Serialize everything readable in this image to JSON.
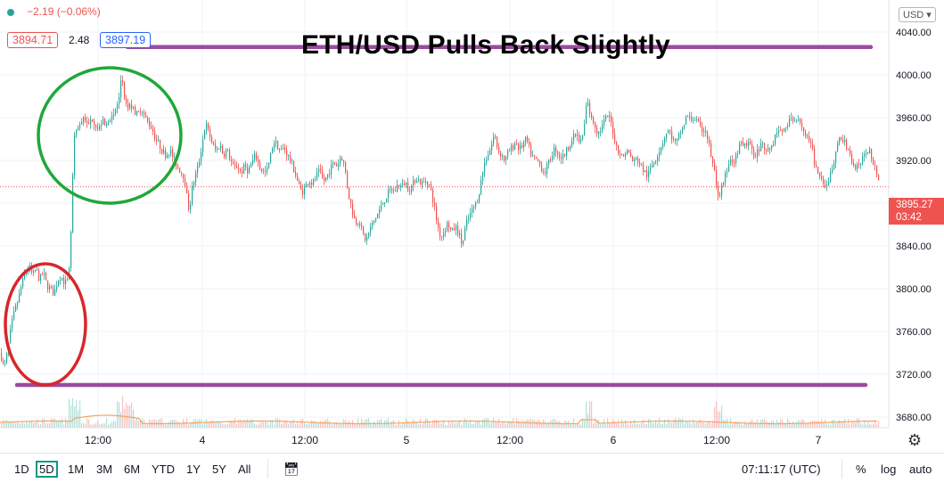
{
  "header": {
    "change_text": "−2.19 (−0.06%)",
    "bid": "3894.71",
    "spread": "2.48",
    "ask": "3897.19",
    "currency": "USD ▾"
  },
  "colors": {
    "up": "#26a69a",
    "down": "#ef5350",
    "annotation_line": "#9c4aa0",
    "circle_green": "#1fa839",
    "circle_red": "#d9262b"
  },
  "chart_data": {
    "type": "candlestick",
    "title": "ETH/USD Pulls Back Slightly",
    "ylim": [
      3670,
      4070
    ],
    "y_ticks": [
      "4040.00",
      "4000.00",
      "3960.00",
      "3920.00",
      "3880.00",
      "3840.00",
      "3800.00",
      "3760.00",
      "3720.00",
      "3680.00"
    ],
    "y_tick_values": [
      4040,
      4000,
      3960,
      3920,
      3880,
      3840,
      3800,
      3760,
      3720,
      3680
    ],
    "x_ticks": [
      "12:00",
      "4",
      "12:00",
      "5",
      "12:00",
      "6",
      "12:00",
      "7"
    ],
    "last_price": "3895.27",
    "countdown": "03:42",
    "price_path": [
      [
        0,
        3740
      ],
      [
        4,
        3725
      ],
      [
        8,
        3742
      ],
      [
        12,
        3765
      ],
      [
        16,
        3780
      ],
      [
        20,
        3790
      ],
      [
        24,
        3805
      ],
      [
        28,
        3815
      ],
      [
        32,
        3822
      ],
      [
        36,
        3812
      ],
      [
        40,
        3818
      ],
      [
        44,
        3808
      ],
      [
        48,
        3815
      ],
      [
        52,
        3803
      ],
      [
        56,
        3800
      ],
      [
        60,
        3795
      ],
      [
        64,
        3808
      ],
      [
        68,
        3812
      ],
      [
        72,
        3805
      ],
      [
        76,
        3808
      ],
      [
        78,
        3825
      ],
      [
        80,
        3880
      ],
      [
        82,
        3930
      ],
      [
        84,
        3950
      ],
      [
        86,
        3945
      ],
      [
        90,
        3955
      ],
      [
        94,
        3962
      ],
      [
        98,
        3950
      ],
      [
        102,
        3960
      ],
      [
        106,
        3955
      ],
      [
        110,
        3948
      ],
      [
        114,
        3958
      ],
      [
        118,
        3950
      ],
      [
        122,
        3962
      ],
      [
        126,
        3958
      ],
      [
        130,
        3970
      ],
      [
        134,
        3980
      ],
      [
        136,
        4010
      ],
      [
        138,
        3978
      ],
      [
        142,
        3968
      ],
      [
        146,
        3972
      ],
      [
        150,
        3966
      ],
      [
        154,
        3962
      ],
      [
        158,
        3970
      ],
      [
        162,
        3960
      ],
      [
        166,
        3955
      ],
      [
        170,
        3950
      ],
      [
        174,
        3940
      ],
      [
        178,
        3935
      ],
      [
        182,
        3928
      ],
      [
        186,
        3925
      ],
      [
        190,
        3930
      ],
      [
        194,
        3922
      ],
      [
        198,
        3915
      ],
      [
        202,
        3910
      ],
      [
        206,
        3905
      ],
      [
        210,
        3880
      ],
      [
        212,
        3872
      ],
      [
        214,
        3890
      ],
      [
        218,
        3905
      ],
      [
        222,
        3915
      ],
      [
        226,
        3935
      ],
      [
        230,
        3955
      ],
      [
        234,
        3945
      ],
      [
        238,
        3935
      ],
      [
        242,
        3928
      ],
      [
        246,
        3935
      ],
      [
        250,
        3925
      ],
      [
        254,
        3930
      ],
      [
        258,
        3920
      ],
      [
        262,
        3912
      ],
      [
        266,
        3915
      ],
      [
        270,
        3908
      ],
      [
        274,
        3915
      ],
      [
        278,
        3910
      ],
      [
        282,
        3918
      ],
      [
        286,
        3925
      ],
      [
        290,
        3915
      ],
      [
        294,
        3910
      ],
      [
        298,
        3908
      ],
      [
        302,
        3920
      ],
      [
        306,
        3938
      ],
      [
        310,
        3935
      ],
      [
        314,
        3928
      ],
      [
        318,
        3932
      ],
      [
        322,
        3925
      ],
      [
        326,
        3918
      ],
      [
        330,
        3910
      ],
      [
        334,
        3898
      ],
      [
        338,
        3890
      ],
      [
        342,
        3895
      ],
      [
        346,
        3902
      ],
      [
        350,
        3898
      ],
      [
        354,
        3905
      ],
      [
        358,
        3910
      ],
      [
        362,
        3900
      ],
      [
        366,
        3905
      ],
      [
        370,
        3912
      ],
      [
        374,
        3918
      ],
      [
        378,
        3915
      ],
      [
        382,
        3925
      ],
      [
        386,
        3915
      ],
      [
        390,
        3890
      ],
      [
        394,
        3875
      ],
      [
        398,
        3862
      ],
      [
        402,
        3865
      ],
      [
        406,
        3852
      ],
      [
        410,
        3845
      ],
      [
        414,
        3855
      ],
      [
        418,
        3862
      ],
      [
        422,
        3868
      ],
      [
        426,
        3875
      ],
      [
        430,
        3882
      ],
      [
        434,
        3888
      ],
      [
        438,
        3893
      ],
      [
        442,
        3890
      ],
      [
        446,
        3898
      ],
      [
        450,
        3895
      ],
      [
        454,
        3900
      ],
      [
        458,
        3893
      ],
      [
        462,
        3896
      ],
      [
        466,
        3905
      ],
      [
        470,
        3900
      ],
      [
        474,
        3898
      ],
      [
        478,
        3902
      ],
      [
        482,
        3895
      ],
      [
        486,
        3880
      ],
      [
        490,
        3860
      ],
      [
        494,
        3848
      ],
      [
        498,
        3855
      ],
      [
        502,
        3862
      ],
      [
        506,
        3852
      ],
      [
        510,
        3858
      ],
      [
        514,
        3852
      ],
      [
        518,
        3840
      ],
      [
        522,
        3860
      ],
      [
        526,
        3868
      ],
      [
        530,
        3875
      ],
      [
        534,
        3880
      ],
      [
        538,
        3895
      ],
      [
        542,
        3915
      ],
      [
        546,
        3925
      ],
      [
        550,
        3932
      ],
      [
        554,
        3945
      ],
      [
        558,
        3930
      ],
      [
        562,
        3925
      ],
      [
        566,
        3920
      ],
      [
        570,
        3928
      ],
      [
        574,
        3932
      ],
      [
        578,
        3938
      ],
      [
        582,
        3930
      ],
      [
        586,
        3935
      ],
      [
        590,
        3940
      ],
      [
        594,
        3928
      ],
      [
        598,
        3922
      ],
      [
        602,
        3920
      ],
      [
        606,
        3915
      ],
      [
        610,
        3908
      ],
      [
        614,
        3915
      ],
      [
        618,
        3925
      ],
      [
        622,
        3932
      ],
      [
        626,
        3925
      ],
      [
        630,
        3922
      ],
      [
        634,
        3928
      ],
      [
        638,
        3935
      ],
      [
        642,
        3940
      ],
      [
        646,
        3945
      ],
      [
        650,
        3935
      ],
      [
        654,
        3945
      ],
      [
        658,
        3978
      ],
      [
        662,
        3962
      ],
      [
        666,
        3955
      ],
      [
        670,
        3945
      ],
      [
        674,
        3950
      ],
      [
        678,
        3958
      ],
      [
        682,
        3962
      ],
      [
        686,
        3952
      ],
      [
        690,
        3935
      ],
      [
        694,
        3928
      ],
      [
        698,
        3922
      ],
      [
        702,
        3930
      ],
      [
        706,
        3925
      ],
      [
        710,
        3918
      ],
      [
        714,
        3922
      ],
      [
        718,
        3915
      ],
      [
        722,
        3910
      ],
      [
        726,
        3905
      ],
      [
        730,
        3915
      ],
      [
        734,
        3920
      ],
      [
        738,
        3928
      ],
      [
        742,
        3935
      ],
      [
        746,
        3945
      ],
      [
        750,
        3948
      ],
      [
        754,
        3940
      ],
      [
        758,
        3935
      ],
      [
        762,
        3945
      ],
      [
        766,
        3952
      ],
      [
        770,
        3962
      ],
      [
        774,
        3958
      ],
      [
        778,
        3960
      ],
      [
        782,
        3955
      ],
      [
        786,
        3948
      ],
      [
        790,
        3950
      ],
      [
        794,
        3938
      ],
      [
        798,
        3920
      ],
      [
        802,
        3905
      ],
      [
        806,
        3880
      ],
      [
        810,
        3900
      ],
      [
        814,
        3908
      ],
      [
        818,
        3918
      ],
      [
        822,
        3915
      ],
      [
        826,
        3925
      ],
      [
        830,
        3935
      ],
      [
        834,
        3932
      ],
      [
        838,
        3938
      ],
      [
        842,
        3930
      ],
      [
        846,
        3925
      ],
      [
        850,
        3930
      ],
      [
        854,
        3935
      ],
      [
        858,
        3932
      ],
      [
        862,
        3930
      ],
      [
        866,
        3935
      ],
      [
        870,
        3945
      ],
      [
        874,
        3950
      ],
      [
        878,
        3945
      ],
      [
        882,
        3955
      ],
      [
        886,
        3958
      ],
      [
        890,
        3955
      ],
      [
        894,
        3962
      ],
      [
        898,
        3955
      ],
      [
        902,
        3945
      ],
      [
        906,
        3938
      ],
      [
        910,
        3932
      ],
      [
        914,
        3915
      ],
      [
        918,
        3905
      ],
      [
        922,
        3898
      ],
      [
        926,
        3892
      ],
      [
        930,
        3905
      ],
      [
        934,
        3915
      ],
      [
        938,
        3930
      ],
      [
        942,
        3945
      ],
      [
        946,
        3938
      ],
      [
        950,
        3930
      ],
      [
        954,
        3922
      ],
      [
        958,
        3912
      ],
      [
        962,
        3915
      ],
      [
        966,
        3920
      ],
      [
        970,
        3925
      ],
      [
        974,
        3930
      ],
      [
        978,
        3922
      ],
      [
        982,
        3912
      ],
      [
        986,
        3898
      ]
    ],
    "annotations": {
      "resistance_price": 4026,
      "support_price": 3710
    }
  },
  "toolbar": {
    "timeframes": [
      "1D",
      "5D",
      "1M",
      "3M",
      "6M",
      "YTD",
      "1Y",
      "5Y",
      "All"
    ],
    "active_timeframe": "5D",
    "calendar_icon": "calendar-icon",
    "clock": "07:11:17 (UTC)",
    "percent": "%",
    "log": "log",
    "auto": "auto"
  }
}
